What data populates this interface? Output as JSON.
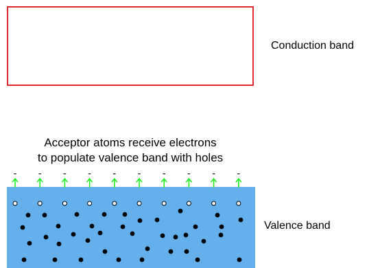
{
  "conduction_band": {
    "label": "Conduction band"
  },
  "valence_band": {
    "label": "Valence band"
  },
  "acceptor_caption": {
    "line1": "Acceptor atoms receive electrons",
    "line2": "to populate valence band with holes"
  },
  "colors": {
    "conduction_outline": "#e0282e",
    "valence_fill": "#64b0ec",
    "arrow": "#22ee22",
    "electron": "#000000",
    "hole": "#ffffff"
  },
  "symbols": {
    "acceptor": "-"
  },
  "counts": {
    "acceptors": 10,
    "holes": 10
  }
}
